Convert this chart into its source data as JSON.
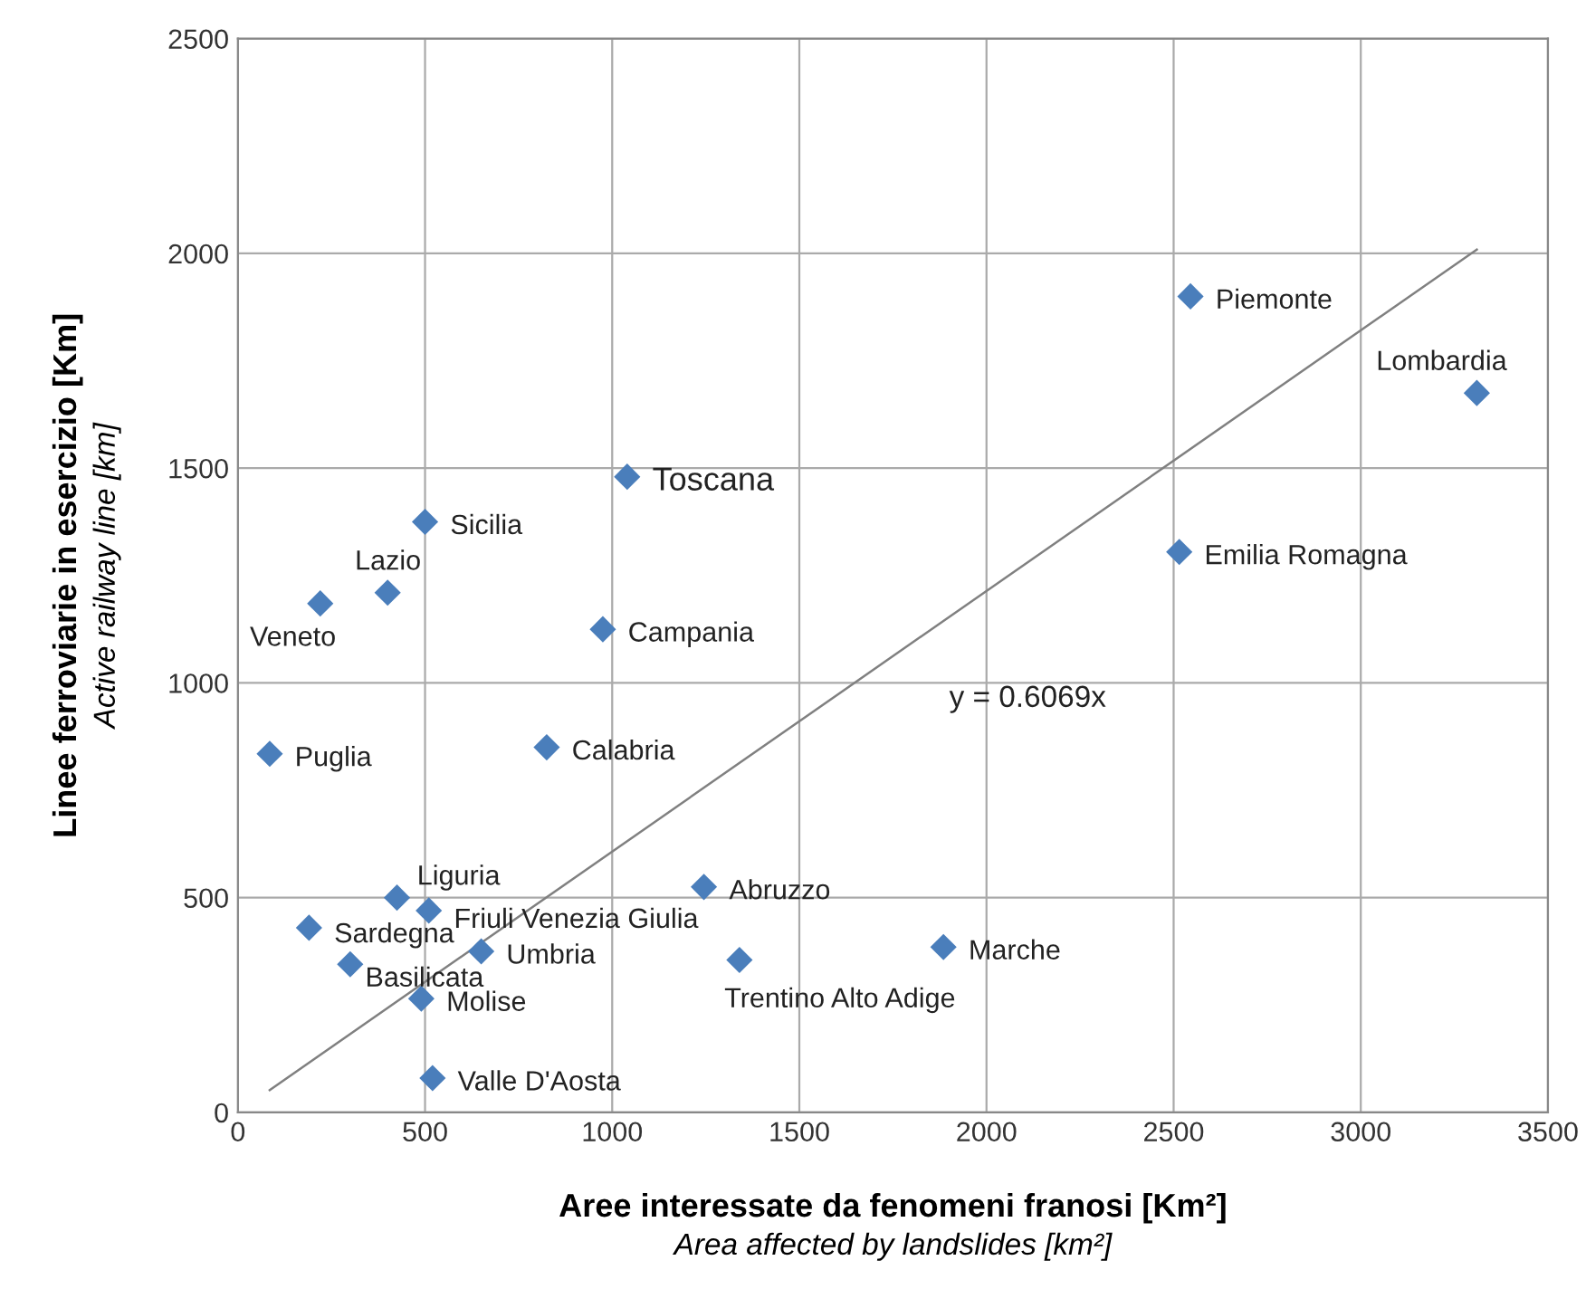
{
  "chart_data": {
    "type": "scatter",
    "xlabel": "Aree interessate da fenomeni franosi [Km²]\nArea affected by landslides [km²]",
    "ylabel": "Linee ferroviarie in esercizio [Km]\nActive railway line [km]",
    "xlim": [
      0,
      3500
    ],
    "ylim": [
      0,
      2500
    ],
    "xticks": [
      0,
      500,
      1000,
      1500,
      2000,
      2500,
      3000,
      3500
    ],
    "yticks": [
      0,
      500,
      1000,
      1500,
      2000,
      2500
    ],
    "grid": true,
    "marker": "diamond",
    "series": [
      {
        "color": "#4a7ebb",
        "x": [
          2545,
          3310,
          2515,
          1040,
          500,
          400,
          220,
          975,
          85,
          825,
          1245,
          425,
          510,
          190,
          650,
          300,
          1340,
          1885,
          490,
          520
        ],
        "values": [
          1900,
          1675,
          1305,
          1480,
          1375,
          1210,
          1185,
          1125,
          835,
          850,
          525,
          500,
          470,
          430,
          375,
          345,
          355,
          385,
          265,
          80
        ]
      },
      {
        "type": "line",
        "marker": "none",
        "color": "#808080",
        "x": [
          85,
          3310
        ],
        "values": [
          52,
          2009
        ]
      }
    ],
    "annotations": [
      {
        "text": "Piemonte",
        "x": 2545,
        "y": 1900
      },
      {
        "text": "Lombardia",
        "x": 3310,
        "y": 1675
      },
      {
        "text": "Emilia Romagna",
        "x": 2515,
        "y": 1305
      },
      {
        "text": "Toscana",
        "x": 1040,
        "y": 1480
      },
      {
        "text": "Sicilia",
        "x": 500,
        "y": 1375
      },
      {
        "text": "Lazio",
        "x": 400,
        "y": 1210
      },
      {
        "text": "Veneto",
        "x": 220,
        "y": 1185
      },
      {
        "text": "Campania",
        "x": 975,
        "y": 1125
      },
      {
        "text": "Puglia",
        "x": 85,
        "y": 835
      },
      {
        "text": "Calabria",
        "x": 825,
        "y": 850
      },
      {
        "text": "Abruzzo",
        "x": 1245,
        "y": 525
      },
      {
        "text": "Liguria",
        "x": 425,
        "y": 500
      },
      {
        "text": "Friuli Venezia Giulia",
        "x": 510,
        "y": 470
      },
      {
        "text": "Sardegna",
        "x": 190,
        "y": 430
      },
      {
        "text": "Umbria",
        "x": 650,
        "y": 375
      },
      {
        "text": "Basilicata",
        "x": 300,
        "y": 345
      },
      {
        "text": "Trentino Alto Adige",
        "x": 1340,
        "y": 355
      },
      {
        "text": "Marche",
        "x": 1885,
        "y": 385
      },
      {
        "text": "Molise",
        "x": 490,
        "y": 265
      },
      {
        "text": "Valle D'Aosta",
        "x": 520,
        "y": 80
      },
      "y = 0.6069x"
    ]
  }
}
